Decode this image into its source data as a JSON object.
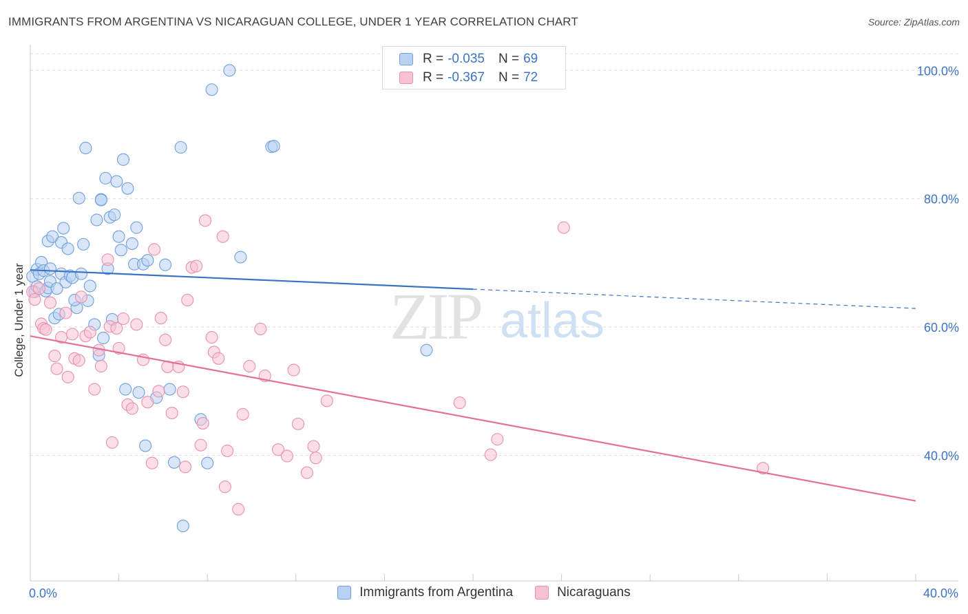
{
  "title": "IMMIGRANTS FROM ARGENTINA VS NICARAGUAN COLLEGE, UNDER 1 YEAR CORRELATION CHART",
  "source": "Source: ZipAtlas.com",
  "colors": {
    "blue": "#3b73c4",
    "blue_fill": "#b9d2f3",
    "pink": "#e36f9a",
    "pink_fill": "#f7c3d4",
    "grid": "#dcdcdc"
  },
  "legend": {
    "rows": [
      {
        "r_label": "R =",
        "r_value": "-0.035",
        "n_label": "N =",
        "n_value": "69"
      },
      {
        "r_label": "R =",
        "r_value": "-0.367",
        "n_label": "N =",
        "n_value": "72"
      }
    ]
  },
  "bottom_legend": {
    "series1": "Immigrants from Argentina",
    "series2": "Nicaraguans"
  },
  "watermark": {
    "zip": "ZIP",
    "atlas": "atlas"
  },
  "chart_data": {
    "type": "scatter",
    "title": "IMMIGRANTS FROM ARGENTINA VS NICARAGUAN COLLEGE, UNDER 1 YEAR CORRELATION CHART",
    "xlabel": "",
    "ylabel": "College, Under 1 year",
    "xlim": [
      0,
      40
    ],
    "ylim": [
      23,
      104
    ],
    "x_tick_labels": [
      "0.0%",
      "40.0%"
    ],
    "y_tick_labels": [
      "40.0%",
      "60.0%",
      "80.0%",
      "100.0%"
    ],
    "y_ticks": [
      40,
      60,
      80,
      100
    ],
    "grid": true,
    "legend_position": "top-center",
    "series": [
      {
        "name": "Immigrants from Argentina",
        "color": "#3b73c4",
        "trend": {
          "x": [
            0,
            20
          ],
          "y": [
            68.9,
            65.9
          ],
          "dashed_to": [
            40,
            62.9
          ]
        },
        "points": [
          [
            0.1,
            67.9
          ],
          [
            0.2,
            65.5
          ],
          [
            0.3,
            66.3
          ],
          [
            0.3,
            69.0
          ],
          [
            0.4,
            68.3
          ],
          [
            0.5,
            70.1
          ],
          [
            0.6,
            68.8
          ],
          [
            0.7,
            65.6
          ],
          [
            0.8,
            66.1
          ],
          [
            0.8,
            73.4
          ],
          [
            0.9,
            67.1
          ],
          [
            1.0,
            74.1
          ],
          [
            1.1,
            61.4
          ],
          [
            1.3,
            62.0
          ],
          [
            1.4,
            73.2
          ],
          [
            1.4,
            68.3
          ],
          [
            1.5,
            75.4
          ],
          [
            1.6,
            67.0
          ],
          [
            1.7,
            72.2
          ],
          [
            1.8,
            68.0
          ],
          [
            1.9,
            67.7
          ],
          [
            2.1,
            63.0
          ],
          [
            2.2,
            80.1
          ],
          [
            2.3,
            68.3
          ],
          [
            2.4,
            72.9
          ],
          [
            2.5,
            87.9
          ],
          [
            2.6,
            64.1
          ],
          [
            2.7,
            66.4
          ],
          [
            2.9,
            60.4
          ],
          [
            3.0,
            76.7
          ],
          [
            3.1,
            55.6
          ],
          [
            3.2,
            79.9
          ],
          [
            3.3,
            58.3
          ],
          [
            3.4,
            83.2
          ],
          [
            3.5,
            69.1
          ],
          [
            3.6,
            77.1
          ],
          [
            3.7,
            61.2
          ],
          [
            3.8,
            77.5
          ],
          [
            3.9,
            82.7
          ],
          [
            4.0,
            74.1
          ],
          [
            4.1,
            72.0
          ],
          [
            4.2,
            86.1
          ],
          [
            4.3,
            50.3
          ],
          [
            4.4,
            81.6
          ],
          [
            4.6,
            73.0
          ],
          [
            4.7,
            69.8
          ],
          [
            4.8,
            75.5
          ],
          [
            4.9,
            49.8
          ],
          [
            5.1,
            69.8
          ],
          [
            5.2,
            41.5
          ],
          [
            5.3,
            70.4
          ],
          [
            5.7,
            49.0
          ],
          [
            6.1,
            69.7
          ],
          [
            6.3,
            50.3
          ],
          [
            6.5,
            38.9
          ],
          [
            6.8,
            88.0
          ],
          [
            6.9,
            29.0
          ],
          [
            7.7,
            45.6
          ],
          [
            8.0,
            38.8
          ],
          [
            8.2,
            97.0
          ],
          [
            9.0,
            100.0
          ],
          [
            9.5,
            70.9
          ],
          [
            10.9,
            88.1
          ],
          [
            11.0,
            88.2
          ],
          [
            17.9,
            56.4
          ],
          [
            3.2,
            79.8
          ],
          [
            1.2,
            66.0
          ],
          [
            0.9,
            69.1
          ],
          [
            2.0,
            64.2
          ]
        ]
      },
      {
        "name": "Nicaraguans",
        "color": "#e36f9a",
        "trend": {
          "x": [
            0,
            40
          ],
          "y": [
            58.6,
            32.9
          ]
        },
        "points": [
          [
            0.1,
            65.5
          ],
          [
            0.2,
            64.3
          ],
          [
            0.4,
            66.0
          ],
          [
            0.5,
            60.5
          ],
          [
            0.6,
            59.8
          ],
          [
            0.7,
            59.6
          ],
          [
            0.9,
            63.8
          ],
          [
            1.1,
            55.5
          ],
          [
            1.2,
            53.5
          ],
          [
            1.4,
            58.4
          ],
          [
            1.6,
            62.2
          ],
          [
            1.7,
            52.2
          ],
          [
            1.9,
            58.9
          ],
          [
            2.0,
            55.1
          ],
          [
            2.2,
            54.8
          ],
          [
            2.3,
            64.7
          ],
          [
            2.5,
            58.6
          ],
          [
            2.7,
            59.2
          ],
          [
            2.9,
            50.3
          ],
          [
            3.1,
            56.4
          ],
          [
            3.2,
            53.9
          ],
          [
            3.5,
            70.5
          ],
          [
            3.6,
            60.1
          ],
          [
            3.7,
            42.0
          ],
          [
            3.9,
            59.8
          ],
          [
            4.0,
            56.7
          ],
          [
            4.2,
            61.3
          ],
          [
            4.4,
            47.9
          ],
          [
            4.6,
            47.3
          ],
          [
            4.8,
            60.4
          ],
          [
            5.1,
            54.9
          ],
          [
            5.3,
            48.3
          ],
          [
            5.5,
            38.8
          ],
          [
            5.6,
            72.1
          ],
          [
            5.8,
            50.0
          ],
          [
            5.9,
            61.4
          ],
          [
            6.1,
            58.0
          ],
          [
            6.2,
            53.8
          ],
          [
            6.4,
            46.6
          ],
          [
            6.7,
            53.8
          ],
          [
            6.9,
            49.9
          ],
          [
            7.0,
            38.2
          ],
          [
            7.1,
            64.2
          ],
          [
            7.3,
            69.3
          ],
          [
            7.5,
            69.5
          ],
          [
            7.7,
            41.6
          ],
          [
            7.8,
            45.0
          ],
          [
            7.9,
            76.6
          ],
          [
            8.2,
            58.4
          ],
          [
            8.3,
            56.1
          ],
          [
            8.5,
            55.1
          ],
          [
            8.7,
            74.1
          ],
          [
            8.8,
            35.1
          ],
          [
            8.9,
            40.7
          ],
          [
            9.4,
            31.6
          ],
          [
            9.6,
            46.4
          ],
          [
            9.9,
            53.9
          ],
          [
            10.4,
            59.7
          ],
          [
            10.6,
            52.4
          ],
          [
            11.2,
            40.9
          ],
          [
            11.6,
            39.9
          ],
          [
            11.9,
            53.3
          ],
          [
            12.1,
            44.9
          ],
          [
            12.5,
            37.3
          ],
          [
            12.8,
            41.4
          ],
          [
            12.9,
            39.6
          ],
          [
            13.4,
            48.5
          ],
          [
            19.4,
            48.2
          ],
          [
            20.8,
            40.1
          ],
          [
            21.1,
            42.5
          ],
          [
            24.1,
            75.5
          ],
          [
            33.1,
            38.0
          ]
        ]
      }
    ]
  }
}
